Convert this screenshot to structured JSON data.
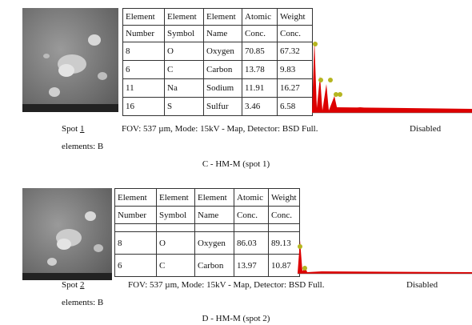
{
  "panels": [
    {
      "spot_label": "Spot",
      "spot_number": "1",
      "fov": "FOV: 537 µm, Mode: 15kV - Map, Detector: BSD Full.",
      "disabled": "Disabled",
      "elements": "elements: B",
      "caption": "C - HM-M (spot 1)",
      "table": {
        "header": [
          [
            "Element",
            "Element",
            "Element",
            "Atomic",
            "Weight"
          ],
          [
            "Number",
            "Symbol",
            "Name",
            "Conc.",
            "Conc."
          ]
        ],
        "rows": [
          [
            "8",
            "O",
            "Oxygen",
            "70.85",
            "67.32"
          ],
          [
            "6",
            "C",
            "Carbon",
            "13.78",
            "9.83"
          ],
          [
            "11",
            "Na",
            "Sodium",
            "11.91",
            "16.27"
          ],
          [
            "16",
            "S",
            "Sulfur",
            "3.46",
            "6.58"
          ]
        ]
      }
    },
    {
      "spot_label": "Spot",
      "spot_number": "2",
      "fov": "FOV: 537 µm, Mode: 15kV - Map, Detector: BSD Full.",
      "disabled": "Disabled",
      "elements": "elements: B",
      "caption": "D - HM-M (spot 2)",
      "table": {
        "header": [
          [
            "Element",
            "Element",
            "Element",
            "Atomic",
            "Weight"
          ],
          [
            "Number",
            "Symbol",
            "Name",
            "Conc.",
            "Conc."
          ]
        ],
        "rows": [
          [
            "8",
            "O",
            "Oxygen",
            "86.03",
            "89.13"
          ],
          [
            "6",
            "C",
            "Carbon",
            "13.97",
            "10.87"
          ]
        ]
      }
    }
  ]
}
